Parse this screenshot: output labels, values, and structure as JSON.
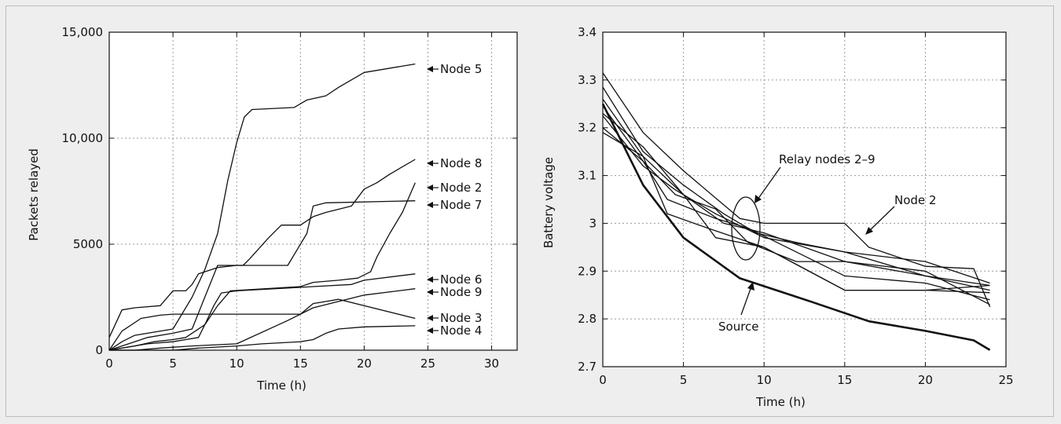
{
  "chart_data": [
    {
      "type": "line",
      "xlabel": "Time (h)",
      "ylabel": "Packets relayed",
      "xlim": [
        0,
        32
      ],
      "ylim": [
        0,
        15000
      ],
      "xticks": [
        0,
        5,
        10,
        15,
        20,
        25,
        30
      ],
      "yticks": [
        0,
        5000,
        10000,
        15000
      ],
      "ytick_labels": [
        "0",
        "5000",
        "10,000",
        "15,000"
      ],
      "grid": true,
      "series": [
        {
          "name": "Node 5",
          "x": [
            0,
            1,
            2,
            3,
            5,
            6.5,
            7.5,
            8.5,
            9.3,
            10,
            10.6,
            11.2,
            14.5,
            15.5,
            17,
            18,
            20,
            24
          ],
          "y": [
            0,
            400,
            700,
            800,
            1000,
            2500,
            3800,
            5500,
            8000,
            9800,
            11000,
            11350,
            11450,
            11800,
            12000,
            12400,
            13100,
            13500
          ]
        },
        {
          "name": "Node 8",
          "x": [
            0,
            2,
            3,
            5,
            6.5,
            7.5,
            8.5,
            10.5,
            11,
            12.5,
            13.5,
            15,
            16,
            17,
            19,
            20,
            21,
            22,
            24
          ],
          "y": [
            0,
            400,
            600,
            800,
            1000,
            2500,
            4000,
            4000,
            4300,
            5300,
            5900,
            5900,
            6300,
            6500,
            6800,
            7600,
            7900,
            8300,
            9000
          ]
        },
        {
          "name": "Node 2",
          "x": [
            0,
            2,
            3.5,
            5,
            6,
            7.5,
            8.5,
            9.5,
            15,
            16,
            18,
            19.5,
            20.5,
            21,
            22,
            23,
            24
          ],
          "y": [
            0,
            200,
            400,
            500,
            600,
            1200,
            2100,
            2800,
            3000,
            3200,
            3300,
            3400,
            3700,
            4400,
            5500,
            6500,
            7900
          ]
        },
        {
          "name": "Node 7",
          "x": [
            0,
            1,
            2,
            4,
            5,
            6,
            6.5,
            7,
            8.5,
            10,
            14,
            15.5,
            16,
            17,
            24
          ],
          "y": [
            600,
            1900,
            2000,
            2100,
            2800,
            2800,
            3100,
            3600,
            3900,
            4000,
            4000,
            5500,
            6800,
            6950,
            7050
          ]
        },
        {
          "name": "Node 6",
          "x": [
            0,
            2,
            3,
            5,
            6,
            7,
            7.5,
            8.2,
            8.8,
            10,
            16,
            19,
            20,
            24
          ],
          "y": [
            0,
            200,
            300,
            400,
            500,
            600,
            1200,
            2100,
            2700,
            2800,
            3000,
            3100,
            3300,
            3600
          ]
        },
        {
          "name": "Node 9",
          "x": [
            0,
            2,
            4,
            6.5,
            10,
            14,
            16,
            18,
            20,
            24
          ],
          "y": [
            0,
            0,
            100,
            200,
            300,
            1400,
            2000,
            2300,
            2600,
            2900
          ]
        },
        {
          "name": "Node 3",
          "x": [
            0,
            1,
            2.5,
            4,
            5,
            10,
            15,
            16,
            18,
            24
          ],
          "y": [
            0,
            900,
            1500,
            1650,
            1700,
            1700,
            1700,
            2200,
            2400,
            1500
          ]
        },
        {
          "name": "Node 4",
          "x": [
            0,
            5,
            7,
            10,
            12,
            15,
            16,
            17,
            18,
            20,
            24
          ],
          "y": [
            0,
            0,
            100,
            200,
            300,
            400,
            500,
            800,
            1000,
            1100,
            1150
          ]
        }
      ],
      "annotations": [
        "Node 5",
        "Node 8",
        "Node 2",
        "Node 7",
        "Node 6",
        "Node 9",
        "Node 3",
        "Node 4"
      ]
    },
    {
      "type": "line",
      "xlabel": "Time (h)",
      "ylabel": "Battery voltage",
      "xlim": [
        0,
        25
      ],
      "ylim": [
        2.7,
        3.4
      ],
      "xticks": [
        0,
        5,
        10,
        15,
        20,
        25
      ],
      "yticks": [
        2.7,
        2.8,
        2.9,
        3.0,
        3.1,
        3.2,
        3.3,
        3.4
      ],
      "ytick_labels": [
        "2.7",
        "2.8",
        "2.9",
        "3",
        "3.1",
        "3.2",
        "3.3",
        "3.4"
      ],
      "grid": true,
      "series": [
        {
          "name": "Source",
          "x": [
            0,
            2.5,
            5,
            8.5,
            13,
            16.5,
            20,
            23,
            24
          ],
          "y": [
            3.25,
            3.08,
            2.97,
            2.885,
            2.835,
            2.795,
            2.775,
            2.755,
            2.735
          ]
        },
        {
          "name": "Node 2",
          "x": [
            0,
            2.5,
            5,
            8.5,
            10,
            15,
            16.5,
            20,
            23,
            24
          ],
          "y": [
            3.315,
            3.19,
            3.11,
            3.01,
            3.0,
            3.0,
            2.95,
            2.91,
            2.905,
            2.825
          ]
        },
        {
          "name": "",
          "x": [
            0,
            2.5,
            5,
            7.5,
            9.5,
            12,
            15,
            20,
            24
          ],
          "y": [
            3.285,
            3.15,
            3.08,
            3.02,
            2.98,
            2.96,
            2.94,
            2.92,
            2.875
          ]
        },
        {
          "name": "",
          "x": [
            0,
            2.5,
            5,
            7.5,
            10,
            15,
            20,
            24
          ],
          "y": [
            3.26,
            3.14,
            3.06,
            3.0,
            2.98,
            2.92,
            2.9,
            2.83
          ]
        },
        {
          "name": "",
          "x": [
            0,
            2.5,
            4.5,
            7,
            9,
            12,
            15,
            20,
            24
          ],
          "y": [
            3.245,
            3.13,
            3.06,
            3.03,
            2.96,
            2.92,
            2.92,
            2.89,
            2.86
          ]
        },
        {
          "name": "",
          "x": [
            0,
            2.5,
            4.5,
            7,
            10,
            15,
            20,
            24
          ],
          "y": [
            3.225,
            3.12,
            3.07,
            3.02,
            2.97,
            2.94,
            2.89,
            2.87
          ]
        },
        {
          "name": "",
          "x": [
            0,
            2.5,
            4,
            7,
            9,
            15,
            20,
            24
          ],
          "y": [
            3.2,
            3.13,
            3.05,
            3.01,
            2.99,
            2.89,
            2.875,
            2.84
          ]
        },
        {
          "name": "",
          "x": [
            0,
            2.5,
            4,
            6.5,
            10,
            15,
            20,
            24
          ],
          "y": [
            3.19,
            3.14,
            3.02,
            2.99,
            2.95,
            2.86,
            2.86,
            2.855
          ]
        },
        {
          "name": "",
          "x": [
            0,
            2.5,
            5,
            7,
            10,
            15,
            20,
            24
          ],
          "y": [
            3.23,
            3.16,
            3.06,
            2.97,
            2.95,
            2.86,
            2.86,
            2.87
          ]
        }
      ],
      "annotations": [
        "Relay nodes 2–9",
        "Node 2",
        "Source"
      ]
    }
  ]
}
